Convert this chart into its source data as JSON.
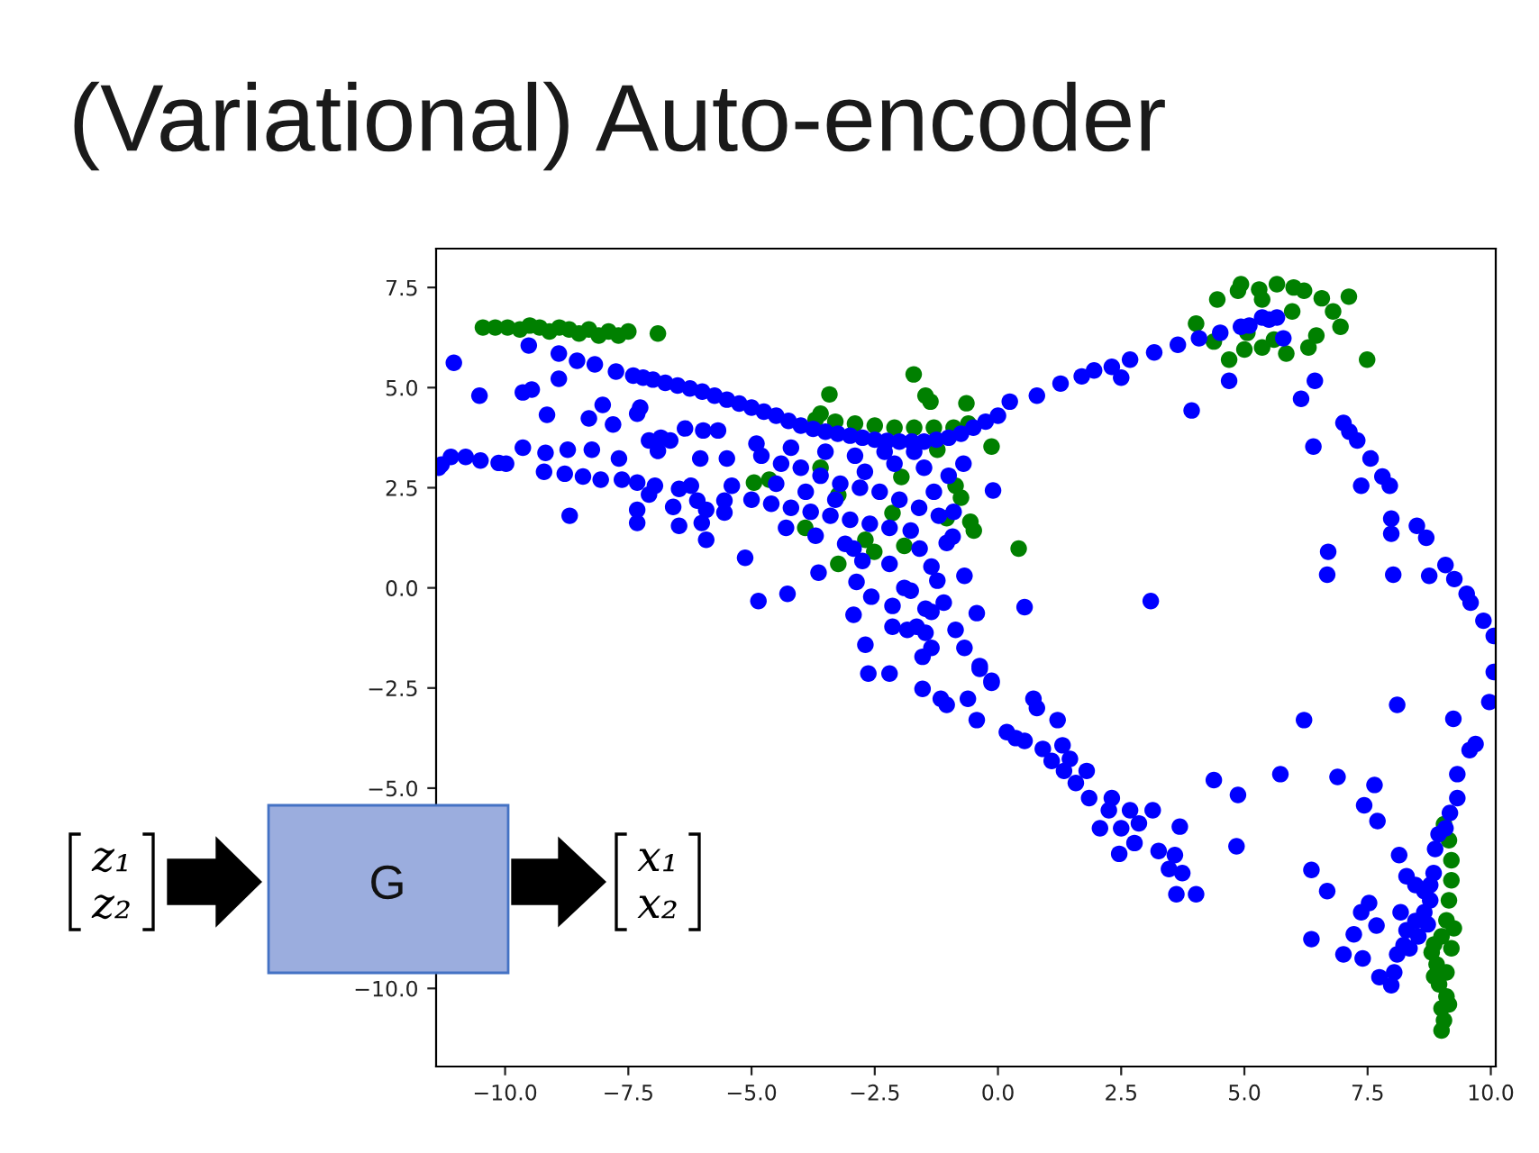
{
  "chart_data": {
    "type": "scatter",
    "title": "(Variational) Auto-encoder",
    "marker": "circle",
    "xlim": [
      -11.4,
      10.1
    ],
    "ylim": [
      -11.95,
      8.47
    ],
    "xticks": [
      {
        "value": -10,
        "label": "−10.0"
      },
      {
        "value": -7.5,
        "label": "−7.5"
      },
      {
        "value": -5,
        "label": "−5.0"
      },
      {
        "value": -2.5,
        "label": "−2.5"
      },
      {
        "value": 0,
        "label": "0.0"
      },
      {
        "value": 2.5,
        "label": "2.5"
      },
      {
        "value": 5,
        "label": "5.0"
      },
      {
        "value": 7.5,
        "label": "7.5"
      },
      {
        "value": 10,
        "label": "10.0"
      }
    ],
    "yticks": [
      {
        "value": -10,
        "label": "−10.0"
      },
      {
        "value": -5,
        "label": "−5.0"
      },
      {
        "value": -2.5,
        "label": "−2.5"
      },
      {
        "value": 0,
        "label": "0.0"
      },
      {
        "value": 2.5,
        "label": "2.5"
      },
      {
        "value": 5,
        "label": "5.0"
      },
      {
        "value": 7.5,
        "label": "7.5"
      }
    ],
    "series": [
      {
        "color": "#008000",
        "x": [
          -10.45,
          -10.2,
          -9.95,
          -9.7,
          -9.5,
          -9.3,
          -9.1,
          -8.9,
          -8.7,
          -8.5,
          -8.3,
          -8.1,
          -7.9,
          -7.7,
          -7.5,
          -6.9,
          -1.71,
          -3.42,
          -3.6,
          -1.37,
          -0.64,
          -0.13,
          0.42,
          -0.56,
          -0.75,
          -4.95,
          -4.64,
          -3.91,
          -2.51,
          -3.24,
          -1.9,
          -1.47,
          -3.24,
          -1.96,
          -0.86,
          -1.04,
          -0.49,
          -3.6,
          -2.69,
          -2.14,
          -1.23,
          -3.7,
          -3.3,
          -2.9,
          -2.5,
          -2.1,
          -1.7,
          -1.3,
          -0.9,
          -0.6,
          7.12,
          7.49,
          4.93,
          5.66,
          6.21,
          6.57,
          6.95,
          4.02,
          4.45,
          4.69,
          5.36,
          5.85,
          6.46,
          5.36,
          5.97,
          4.38,
          5.06,
          4.87,
          5.3,
          6.0,
          6.8,
          6.3,
          5.6,
          5.0,
          9.05,
          9.15,
          9.2,
          9.2,
          9.15,
          9.1,
          9.0,
          8.85,
          9.2,
          8.9,
          9.1,
          8.95,
          9.1,
          9.0,
          9.05,
          9.0,
          8.8,
          9.25,
          8.85,
          9.15
        ],
        "values": [
          6.5,
          6.5,
          6.5,
          6.45,
          6.55,
          6.5,
          6.4,
          6.5,
          6.45,
          6.35,
          6.45,
          6.3,
          6.4,
          6.3,
          6.4,
          6.35,
          5.33,
          4.83,
          4.35,
          4.65,
          4.61,
          3.53,
          0.98,
          1.65,
          2.25,
          2.63,
          2.7,
          1.5,
          0.9,
          0.6,
          1.05,
          4.8,
          2.32,
          2.77,
          2.55,
          1.74,
          1.43,
          3.0,
          1.2,
          1.87,
          3.45,
          4.2,
          4.15,
          4.1,
          4.05,
          4.0,
          4.0,
          4.0,
          4.0,
          4.1,
          7.27,
          5.7,
          7.58,
          7.58,
          7.42,
          7.23,
          6.52,
          6.6,
          7.2,
          5.7,
          6.0,
          5.85,
          6.3,
          7.2,
          6.9,
          6.15,
          6.37,
          7.42,
          7.45,
          7.5,
          6.9,
          6.0,
          6.2,
          5.95,
          -5.9,
          -6.3,
          -6.8,
          -7.3,
          -7.8,
          -8.3,
          -8.7,
          -8.9,
          -9.0,
          -9.4,
          -9.6,
          -9.9,
          -10.2,
          -10.5,
          -10.8,
          -11.05,
          -9.1,
          -8.5,
          -9.7,
          -10.4
        ]
      },
      {
        "color": "#0000ff",
        "x": [
          -11.35,
          -11.29,
          -11.1,
          -10.8,
          -10.5,
          -10.13,
          -9.98,
          -11.04,
          -10.52,
          -9.52,
          -9.64,
          -9.46,
          -9.15,
          -8.91,
          -9.64,
          -9.18,
          -8.73,
          -8.69,
          -8.3,
          -8.02,
          -7.81,
          -8.24,
          -8.91,
          -8.54,
          -8.18,
          -7.75,
          -7.4,
          -7.0,
          -6.5,
          -6.0,
          -5.5,
          -5.0,
          -4.5,
          -4.0,
          -3.5,
          -3.0,
          -2.5,
          -2.0,
          -1.5,
          -1.0,
          -0.5,
          0.0,
          0.24,
          0.79,
          1.27,
          1.7,
          1.95,
          2.31,
          2.5,
          2.68,
          3.17,
          3.65,
          4.08,
          4.51,
          4.93,
          5.1,
          5.36,
          5.5,
          5.66,
          5.79,
          -7.2,
          -6.75,
          -6.25,
          -5.75,
          -5.25,
          -4.75,
          -4.25,
          -3.75,
          -3.25,
          -2.75,
          -2.25,
          -1.75,
          -1.25,
          -0.75,
          -0.25,
          4.69,
          3.93,
          6.43,
          6.15,
          6.4,
          7.01,
          7.13,
          7.29,
          7.56,
          7.8,
          7.95,
          7.37,
          7.98,
          7.98,
          8.5,
          8.69,
          9.08,
          9.26,
          9.51,
          9.59,
          9.85,
          10.06,
          10.06,
          9.97,
          9.24,
          9.69,
          9.57,
          9.32,
          9.32,
          9.17,
          9.08,
          8.1,
          6.7,
          6.68,
          8.02,
          8.75,
          3.1,
          0.54,
          -0.1,
          6.21,
          5.73,
          6.89,
          7.64,
          7.43,
          7.7,
          4.38,
          4.87,
          4.84,
          6.36,
          6.68,
          6.36,
          7.01,
          7.22,
          7.4,
          7.37,
          7.53,
          7.68,
          7.74,
          7.98,
          8.14,
          8.29,
          8.47,
          8.65,
          8.77,
          8.84,
          8.87,
          8.94,
          8.65,
          8.47,
          8.29,
          8.17,
          8.23,
          8.1,
          8.04,
          8.35,
          8.53,
          8.72,
          8.77,
          -1.53,
          -1.16,
          -1.04,
          -0.61,
          -0.37,
          -0.13,
          -0.43,
          0.72,
          0.79,
          1.21,
          0.18,
          0.36,
          0.54,
          0.91,
          1.31,
          1.09,
          1.46,
          1.34,
          1.8,
          1.58,
          1.85,
          2.31,
          2.25,
          2.68,
          2.07,
          2.5,
          2.86,
          3.14,
          2.46,
          2.77,
          3.26,
          3.59,
          3.69,
          3.47,
          3.74,
          3.62,
          4.02,
          -9.21,
          -8.79,
          -8.42,
          -8.06,
          -7.63,
          -7.32,
          -6.96,
          -6.47,
          -6.23,
          -6.1,
          -5.92,
          -6.01,
          -5.92,
          -6.59,
          -6.47,
          -7.32,
          -7.32,
          -7.08,
          -7.69,
          -7.08,
          -6.9,
          -6.65,
          -6.35,
          -6.04,
          -5.98,
          -5.68,
          -5.5,
          -5.4,
          -5.55,
          -5.55,
          -5.13,
          -4.86,
          -4.27,
          -7.32,
          -7.26,
          -6.84,
          -5.0,
          -4.6,
          -4.2,
          -3.8,
          -3.4,
          -3.0,
          -2.6,
          -2.2,
          -4.8,
          -4.4,
          -4.0,
          -3.6,
          -3.2,
          -2.8,
          -2.4,
          -2.0,
          -1.6,
          -1.2,
          -4.5,
          -3.9,
          -3.3,
          -2.7,
          -2.1,
          -1.5,
          -1.0,
          -0.7,
          -1.3,
          -0.9,
          -4.3,
          -3.7,
          -3.1,
          -4.9,
          -4.2,
          -3.5,
          -2.9,
          -2.3,
          -1.7,
          -2.93,
          -2.75,
          -2.2,
          -1.59,
          -3.64,
          -2.87,
          -2.57,
          -2.14,
          -1.9,
          -2.93,
          -2.69,
          -2.14,
          -1.84,
          -1.47,
          -2.63,
          -2.2,
          -1.53,
          -1.35,
          -1.77,
          -1.35,
          -1.23,
          -1.04,
          -0.92,
          -0.68,
          -1.77,
          -1.35,
          -1.1,
          -0.86,
          -0.43,
          -0.68,
          -0.37,
          -0.13,
          -1.65,
          -1.47
        ],
        "values": [
          3.0,
          3.08,
          3.27,
          3.27,
          3.18,
          3.12,
          3.1,
          5.62,
          4.8,
          6.05,
          4.88,
          4.95,
          4.32,
          5.22,
          3.5,
          3.37,
          3.45,
          1.8,
          4.23,
          4.57,
          4.08,
          3.45,
          5.85,
          5.67,
          5.58,
          5.4,
          5.3,
          5.2,
          5.05,
          4.9,
          4.7,
          4.5,
          4.3,
          4.05,
          3.9,
          3.8,
          3.7,
          3.65,
          3.65,
          3.75,
          4.0,
          4.3,
          4.65,
          4.8,
          5.1,
          5.28,
          5.43,
          5.52,
          5.25,
          5.7,
          5.88,
          6.07,
          6.23,
          6.37,
          6.52,
          6.55,
          6.75,
          6.7,
          6.75,
          6.23,
          5.25,
          5.12,
          4.98,
          4.8,
          4.6,
          4.4,
          4.17,
          3.97,
          3.85,
          3.75,
          3.67,
          3.65,
          3.7,
          3.85,
          4.15,
          5.17,
          4.43,
          5.17,
          4.72,
          3.53,
          4.12,
          3.9,
          3.68,
          3.23,
          2.78,
          2.55,
          2.55,
          1.73,
          1.35,
          1.55,
          1.25,
          0.57,
          0.22,
          -0.15,
          -0.37,
          -0.82,
          -1.2,
          -2.1,
          -2.85,
          -3.27,
          -3.9,
          -4.05,
          -4.65,
          -5.25,
          -5.62,
          -6.0,
          -2.92,
          0.9,
          0.33,
          0.33,
          0.3,
          -0.33,
          -0.48,
          2.43,
          -3.3,
          -4.65,
          -4.72,
          -4.92,
          -5.43,
          -5.82,
          -4.8,
          -5.17,
          -6.45,
          -7.04,
          -7.57,
          -8.77,
          -9.15,
          -8.65,
          -9.25,
          -8.1,
          -7.87,
          -8.43,
          -9.72,
          -9.92,
          -6.67,
          -7.2,
          -7.42,
          -7.57,
          -7.8,
          -7.12,
          -6.52,
          -6.15,
          -8.1,
          -8.32,
          -8.55,
          -8.1,
          -8.92,
          -9.15,
          -9.6,
          -9.0,
          -8.7,
          -8.4,
          -7.42,
          -2.52,
          -2.77,
          -2.92,
          -2.77,
          -2.02,
          -2.37,
          -3.3,
          -2.77,
          -3.0,
          -3.3,
          -3.6,
          -3.75,
          -3.82,
          -4.02,
          -3.93,
          -4.32,
          -4.27,
          -4.57,
          -4.57,
          -4.87,
          -5.25,
          -5.25,
          -5.55,
          -5.55,
          -6.0,
          -6.0,
          -5.88,
          -5.55,
          -6.64,
          -6.37,
          -6.57,
          -6.67,
          -5.96,
          -7.02,
          -7.12,
          -7.65,
          -7.65,
          2.9,
          2.85,
          2.78,
          2.7,
          2.7,
          2.63,
          2.55,
          2.47,
          2.55,
          2.18,
          1.95,
          1.62,
          1.2,
          2.02,
          1.55,
          1.95,
          1.62,
          2.33,
          3.23,
          3.68,
          3.42,
          3.68,
          3.98,
          3.23,
          3.93,
          3.93,
          3.23,
          2.55,
          2.18,
          1.88,
          0.75,
          -0.33,
          -0.15,
          4.35,
          4.5,
          3.75,
          2.2,
          2.1,
          2.0,
          1.9,
          1.8,
          1.7,
          1.6,
          1.5,
          3.3,
          3.1,
          3.0,
          2.8,
          2.6,
          2.5,
          2.4,
          2.2,
          2.0,
          1.8,
          2.6,
          2.4,
          2.2,
          2.9,
          3.1,
          3.0,
          2.8,
          3.1,
          2.4,
          1.9,
          1.5,
          1.3,
          1.1,
          3.6,
          3.5,
          3.4,
          3.3,
          3.4,
          3.4,
          0.98,
          0.67,
          0.6,
          0.98,
          0.38,
          0.15,
          -0.22,
          -0.45,
          0.0,
          -0.67,
          -1.42,
          -0.97,
          -1.05,
          -0.52,
          -2.14,
          -2.14,
          -1.72,
          -1.5,
          1.43,
          0.53,
          0.18,
          1.12,
          1.28,
          0.3,
          -0.07,
          -0.6,
          -0.37,
          -1.05,
          -0.63,
          -1.5,
          -1.95,
          -2.32,
          -0.97,
          -1.12
        ]
      }
    ],
    "annotations": [
      "z₁",
      "z₂",
      "G",
      "x₁",
      "x₂"
    ]
  }
}
